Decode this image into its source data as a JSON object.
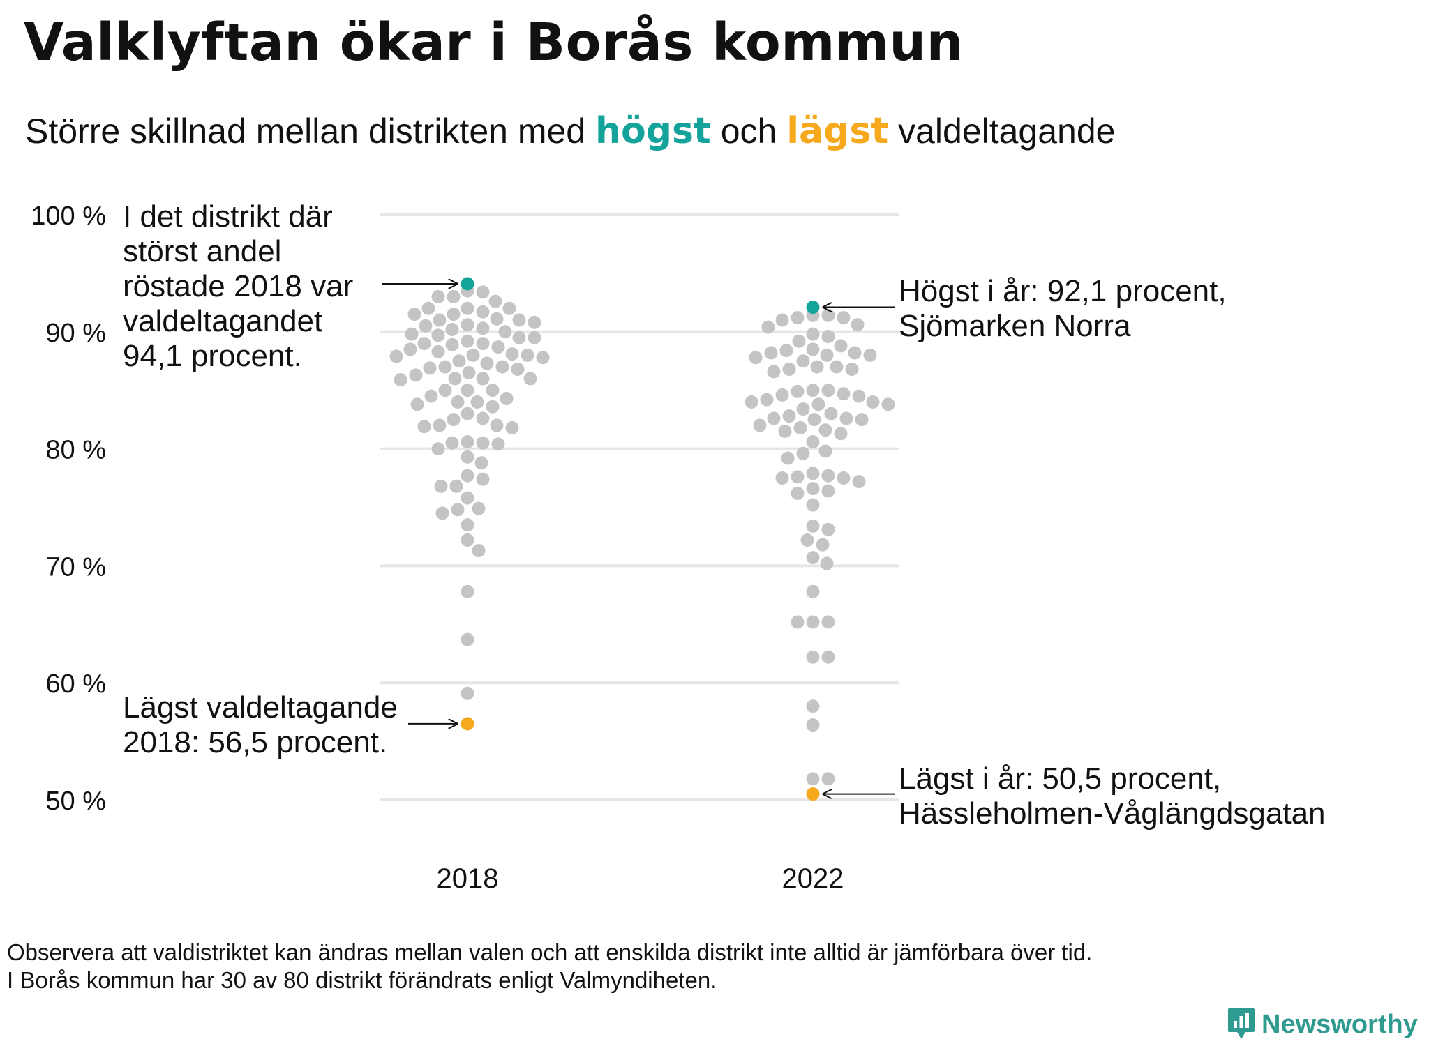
{
  "title": "Valklyftan ökar i Borås kommun",
  "subtitle": {
    "part1": "Större  skillnad  mellan  distrikten   med",
    "high_word": "högst",
    "middle": "och",
    "low_word": "lägst",
    "part2": "valdeltagande"
  },
  "colors": {
    "high": "#14a39a",
    "low": "#f6a91c",
    "other": "#c4c4c4",
    "grid": "#e6e6e6"
  },
  "annotations": {
    "top_2018": [
      "I det distrikt där",
      "störst andel",
      "röstade 2018 var",
      "valdeltagandet",
      "94,1 procent."
    ],
    "bottom_2018": [
      "Lägst valdeltagande",
      "2018: 56,5 procent."
    ],
    "top_2022": [
      "Högst i år: 92,1 procent,",
      "Sjömarken Norra"
    ],
    "bottom_2022": [
      "Lägst i år: 50,5 procent,",
      "Hässleholmen-Våglängdsgatan"
    ]
  },
  "footnote": [
    "Observera att valdistriktet kan ändras mellan valen och att enskilda distrikt inte alltid är jämförbara över tid.",
    "I Borås kommun har 30 av 80 distrikt förändrats enligt Valmyndiheten."
  ],
  "brand": {
    "label": "Newsworthy",
    "icon": "newsworthy-logo-icon"
  },
  "chart_data": {
    "type": "scatter",
    "ylim": [
      50,
      100
    ],
    "yticks": [
      100,
      90,
      80,
      70,
      60,
      50
    ],
    "ytick_labels": [
      "100 %",
      "90 %",
      "80 %",
      "70 %",
      "60 %",
      "50 %"
    ],
    "categories": [
      "2018",
      "2022"
    ],
    "series": [
      {
        "category": "2018",
        "highest": 94.1,
        "lowest": 56.5,
        "values": [
          93.5,
          93.4,
          93.0,
          93.0,
          92.6,
          92.0,
          92.0,
          92.0,
          91.7,
          91.5,
          91.5,
          91.1,
          91.0,
          91.0,
          90.8,
          90.6,
          90.5,
          90.3,
          90.2,
          90.0,
          89.8,
          89.7,
          89.5,
          89.5,
          89.2,
          89.0,
          89.0,
          88.9,
          88.7,
          88.5,
          88.3,
          88.1,
          88.0,
          88.0,
          87.9,
          87.8,
          87.5,
          87.3,
          87.0,
          87.0,
          86.9,
          86.8,
          86.5,
          86.3,
          86.0,
          86.0,
          86.0,
          85.9,
          85.0,
          85.0,
          85.0,
          84.5,
          84.3,
          84.0,
          84.0,
          83.8,
          83.6,
          83.0,
          82.6,
          82.5,
          82.0,
          82.0,
          81.9,
          81.8,
          80.6,
          80.5,
          80.5,
          80.4,
          80.0,
          79.3,
          78.8,
          77.7,
          77.4,
          76.8,
          76.8,
          75.8,
          74.9,
          74.8,
          74.5,
          73.5,
          72.2,
          71.3,
          67.8,
          63.7,
          59.1
        ]
      },
      {
        "category": "2022",
        "highest": 92.1,
        "lowest": 50.5,
        "values": [
          91.4,
          91.4,
          91.2,
          91.2,
          91.0,
          90.6,
          90.4,
          89.8,
          89.6,
          89.2,
          88.8,
          88.5,
          88.4,
          88.2,
          88.2,
          88.0,
          88.0,
          87.8,
          87.5,
          87.0,
          87.0,
          86.8,
          86.8,
          86.6,
          85.0,
          85.0,
          84.9,
          84.7,
          84.6,
          84.5,
          84.2,
          84.0,
          84.0,
          83.8,
          83.8,
          83.4,
          83.0,
          82.8,
          82.6,
          82.6,
          82.5,
          82.5,
          82.0,
          81.8,
          81.6,
          81.5,
          81.3,
          80.6,
          79.8,
          79.6,
          79.2,
          77.9,
          77.7,
          77.6,
          77.5,
          77.5,
          77.2,
          76.6,
          76.4,
          76.2,
          75.2,
          73.4,
          73.1,
          72.2,
          71.8,
          70.7,
          70.2,
          67.8,
          65.2,
          65.2,
          65.2,
          62.2,
          62.2,
          58.0,
          56.4,
          51.8,
          51.8
        ]
      }
    ]
  }
}
